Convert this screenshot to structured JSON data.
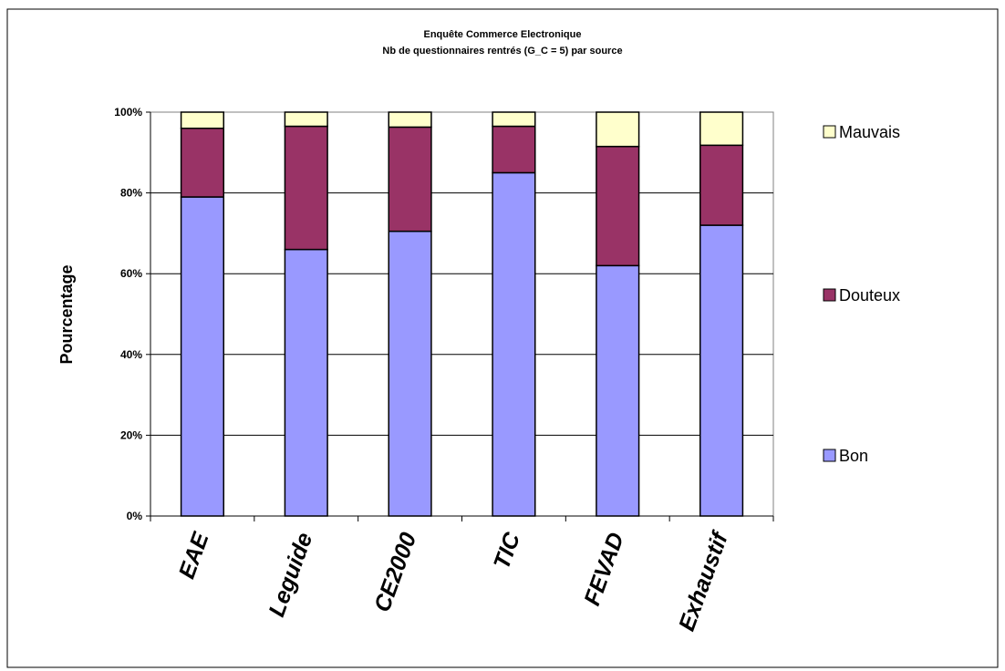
{
  "chart_data": {
    "type": "bar",
    "stacked": true,
    "title": "Enquête Commerce Electronique",
    "subtitle": "Nb de questionnaires rentrés (G_C = 5) par source",
    "ylabel": "Pourcentage",
    "xlabel": "",
    "ylim": [
      0,
      100
    ],
    "yticks": [
      "0%",
      "20%",
      "40%",
      "60%",
      "80%",
      "100%"
    ],
    "categories": [
      "EAE",
      "Leguide",
      "CE2000",
      "TIC",
      "FEVAD",
      "Exhaustif"
    ],
    "series": [
      {
        "name": "Bon",
        "color": "#9999ff",
        "values": [
          79,
          66,
          70.5,
          85,
          62,
          72
        ]
      },
      {
        "name": "Douteux",
        "color": "#993366",
        "values": [
          17,
          30.5,
          25.8,
          11.5,
          29.5,
          19.8
        ]
      },
      {
        "name": "Mauvais",
        "color": "#ffffcc",
        "values": [
          4,
          3.5,
          3.7,
          3.5,
          8.5,
          8.2
        ]
      }
    ],
    "legend": [
      "Mauvais",
      "Douteux",
      "Bon"
    ],
    "legend_position": "right",
    "grid": true
  }
}
